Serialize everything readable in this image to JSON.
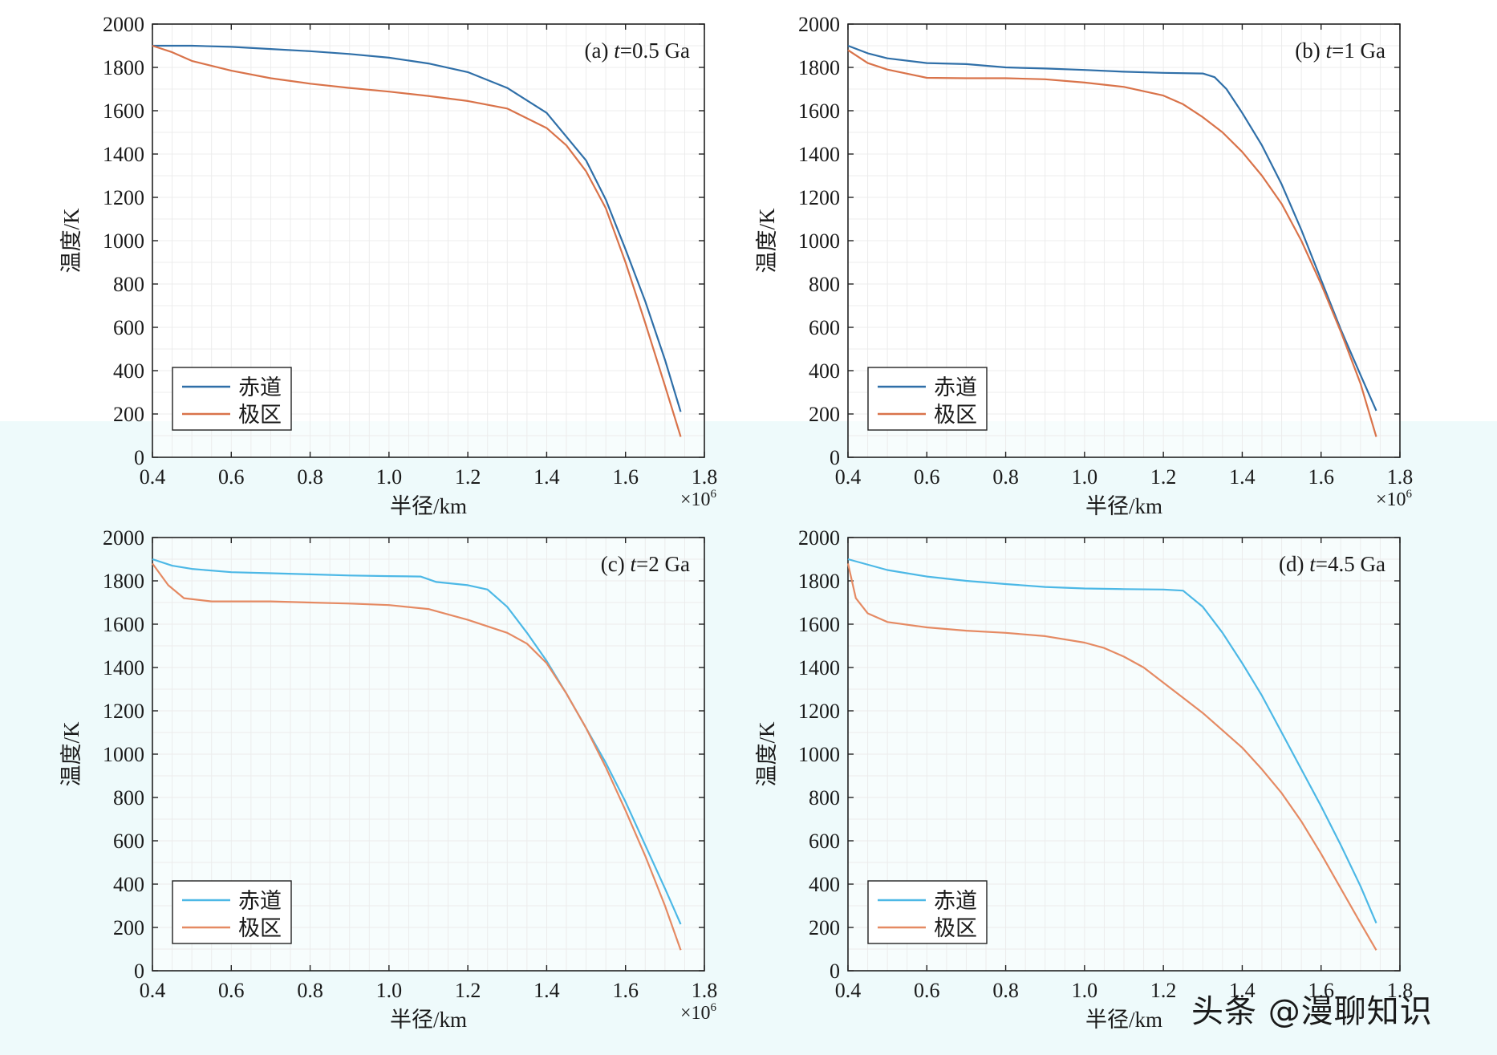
{
  "figure": {
    "y_label": "温度/K",
    "x_label": "半径/km",
    "x_multiplier_base": "×10",
    "x_multiplier_exp": "6",
    "legend": {
      "equator": "赤道",
      "pole": "极区"
    },
    "watermark": "头条 @漫聊知识"
  },
  "colors": {
    "equator_dark": "#2f6fa8",
    "pole_dark": "#d9734a",
    "equator_light": "#4cb8e6",
    "pole_light": "#e58a63",
    "axis": "#222222",
    "grid": "#ececec"
  },
  "chart_data": [
    {
      "type": "line",
      "title_prefix": "(a) ",
      "title_var": "t",
      "title_suffix": "=0.5 Ga",
      "xlim": [
        0.4,
        1.8
      ],
      "ylim": [
        0,
        2000
      ],
      "xticks": [
        "0.4",
        "0.6",
        "0.8",
        "1.0",
        "1.2",
        "1.4",
        "1.6",
        "1.8"
      ],
      "yticks": [
        "0",
        "200",
        "400",
        "600",
        "800",
        "1000",
        "1200",
        "1400",
        "1600",
        "1800",
        "2000"
      ],
      "xlabel": "半径/km",
      "ylabel": "温度/K",
      "x_multiplier": "×10^6",
      "series": [
        {
          "name": "赤道",
          "palette": "dark",
          "x": [
            0.4,
            0.5,
            0.6,
            0.7,
            0.8,
            0.9,
            1.0,
            1.1,
            1.2,
            1.3,
            1.4,
            1.5,
            1.55,
            1.6,
            1.65,
            1.7,
            1.74
          ],
          "y": [
            1900,
            1900,
            1895,
            1885,
            1875,
            1862,
            1845,
            1818,
            1778,
            1705,
            1590,
            1370,
            1190,
            960,
            720,
            450,
            210
          ]
        },
        {
          "name": "极区",
          "palette": "dark",
          "x": [
            0.4,
            0.45,
            0.5,
            0.6,
            0.7,
            0.8,
            0.9,
            1.0,
            1.1,
            1.2,
            1.3,
            1.4,
            1.45,
            1.5,
            1.55,
            1.6,
            1.65,
            1.7,
            1.74
          ],
          "y": [
            1900,
            1870,
            1830,
            1785,
            1750,
            1725,
            1705,
            1688,
            1668,
            1645,
            1610,
            1520,
            1440,
            1320,
            1150,
            900,
            620,
            330,
            95
          ]
        }
      ]
    },
    {
      "type": "line",
      "title_prefix": "(b) ",
      "title_var": "t",
      "title_suffix": "=1 Ga",
      "xlim": [
        0.4,
        1.8
      ],
      "ylim": [
        0,
        2000
      ],
      "xticks": [
        "0.4",
        "0.6",
        "0.8",
        "1.0",
        "1.2",
        "1.4",
        "1.6",
        "1.8"
      ],
      "yticks": [
        "0",
        "200",
        "400",
        "600",
        "800",
        "1000",
        "1200",
        "1400",
        "1600",
        "1800",
        "2000"
      ],
      "xlabel": "半径/km",
      "ylabel": "温度/K",
      "x_multiplier": "×10^6",
      "series": [
        {
          "name": "赤道",
          "palette": "dark",
          "x": [
            0.4,
            0.45,
            0.5,
            0.6,
            0.7,
            0.8,
            0.9,
            1.0,
            1.1,
            1.2,
            1.3,
            1.33,
            1.36,
            1.4,
            1.45,
            1.5,
            1.55,
            1.6,
            1.65,
            1.7,
            1.74
          ],
          "y": [
            1900,
            1865,
            1842,
            1820,
            1815,
            1800,
            1795,
            1788,
            1780,
            1775,
            1772,
            1755,
            1700,
            1590,
            1440,
            1260,
            1050,
            820,
            590,
            380,
            215
          ]
        },
        {
          "name": "极区",
          "palette": "dark",
          "x": [
            0.4,
            0.45,
            0.5,
            0.6,
            0.7,
            0.8,
            0.9,
            1.0,
            1.1,
            1.2,
            1.25,
            1.3,
            1.35,
            1.4,
            1.45,
            1.5,
            1.55,
            1.6,
            1.65,
            1.7,
            1.74
          ],
          "y": [
            1880,
            1820,
            1790,
            1752,
            1750,
            1750,
            1745,
            1730,
            1710,
            1670,
            1630,
            1570,
            1500,
            1410,
            1300,
            1170,
            1000,
            800,
            580,
            340,
            95
          ]
        }
      ]
    },
    {
      "type": "line",
      "title_prefix": "(c) ",
      "title_var": "t",
      "title_suffix": "=2 Ga",
      "xlim": [
        0.4,
        1.8
      ],
      "ylim": [
        0,
        2000
      ],
      "xticks": [
        "0.4",
        "0.6",
        "0.8",
        "1.0",
        "1.2",
        "1.4",
        "1.6",
        "1.8"
      ],
      "yticks": [
        "0",
        "200",
        "400",
        "600",
        "800",
        "1000",
        "1200",
        "1400",
        "1600",
        "1800",
        "2000"
      ],
      "xlabel": "半径/km",
      "ylabel": "温度/K",
      "x_multiplier": "×10^6",
      "series": [
        {
          "name": "赤道",
          "palette": "light",
          "x": [
            0.4,
            0.45,
            0.5,
            0.6,
            0.7,
            0.8,
            0.9,
            1.0,
            1.08,
            1.12,
            1.2,
            1.25,
            1.3,
            1.35,
            1.4,
            1.45,
            1.5,
            1.55,
            1.6,
            1.65,
            1.7,
            1.74
          ],
          "y": [
            1900,
            1870,
            1855,
            1840,
            1835,
            1830,
            1825,
            1822,
            1820,
            1795,
            1780,
            1760,
            1680,
            1560,
            1430,
            1280,
            1120,
            960,
            780,
            580,
            380,
            215
          ]
        },
        {
          "name": "极区",
          "palette": "light",
          "x": [
            0.4,
            0.44,
            0.48,
            0.55,
            0.6,
            0.7,
            0.8,
            0.9,
            1.0,
            1.1,
            1.2,
            1.25,
            1.3,
            1.35,
            1.4,
            1.45,
            1.5,
            1.55,
            1.6,
            1.65,
            1.7,
            1.74
          ],
          "y": [
            1880,
            1780,
            1720,
            1705,
            1705,
            1705,
            1700,
            1695,
            1688,
            1670,
            1620,
            1590,
            1560,
            1510,
            1420,
            1280,
            1120,
            940,
            740,
            530,
            300,
            95
          ]
        }
      ]
    },
    {
      "type": "line",
      "title_prefix": "(d) ",
      "title_var": "t",
      "title_suffix": "=4.5 Ga",
      "xlim": [
        0.4,
        1.8
      ],
      "ylim": [
        0,
        2000
      ],
      "xticks": [
        "0.4",
        "0.6",
        "0.8",
        "1.0",
        "1.2",
        "1.4",
        "1.6",
        "1.8"
      ],
      "yticks": [
        "0",
        "200",
        "400",
        "600",
        "800",
        "1000",
        "1200",
        "1400",
        "1600",
        "1800",
        "2000"
      ],
      "xlabel": "半径/km",
      "ylabel": "温度/K",
      "x_multiplier": "",
      "series": [
        {
          "name": "赤道",
          "palette": "light",
          "x": [
            0.4,
            0.5,
            0.6,
            0.7,
            0.8,
            0.9,
            1.0,
            1.1,
            1.2,
            1.25,
            1.3,
            1.35,
            1.4,
            1.45,
            1.5,
            1.55,
            1.6,
            1.65,
            1.7,
            1.74
          ],
          "y": [
            1900,
            1850,
            1820,
            1800,
            1785,
            1772,
            1765,
            1762,
            1760,
            1755,
            1680,
            1560,
            1420,
            1270,
            1100,
            930,
            760,
            580,
            390,
            220
          ]
        },
        {
          "name": "极区",
          "palette": "light",
          "x": [
            0.4,
            0.42,
            0.45,
            0.5,
            0.6,
            0.7,
            0.8,
            0.9,
            1.0,
            1.05,
            1.1,
            1.15,
            1.2,
            1.25,
            1.3,
            1.35,
            1.4,
            1.45,
            1.5,
            1.55,
            1.6,
            1.65,
            1.7,
            1.74
          ],
          "y": [
            1880,
            1720,
            1650,
            1610,
            1585,
            1570,
            1560,
            1545,
            1515,
            1490,
            1450,
            1400,
            1330,
            1260,
            1190,
            1110,
            1030,
            930,
            820,
            690,
            540,
            380,
            220,
            95
          ]
        }
      ]
    }
  ]
}
